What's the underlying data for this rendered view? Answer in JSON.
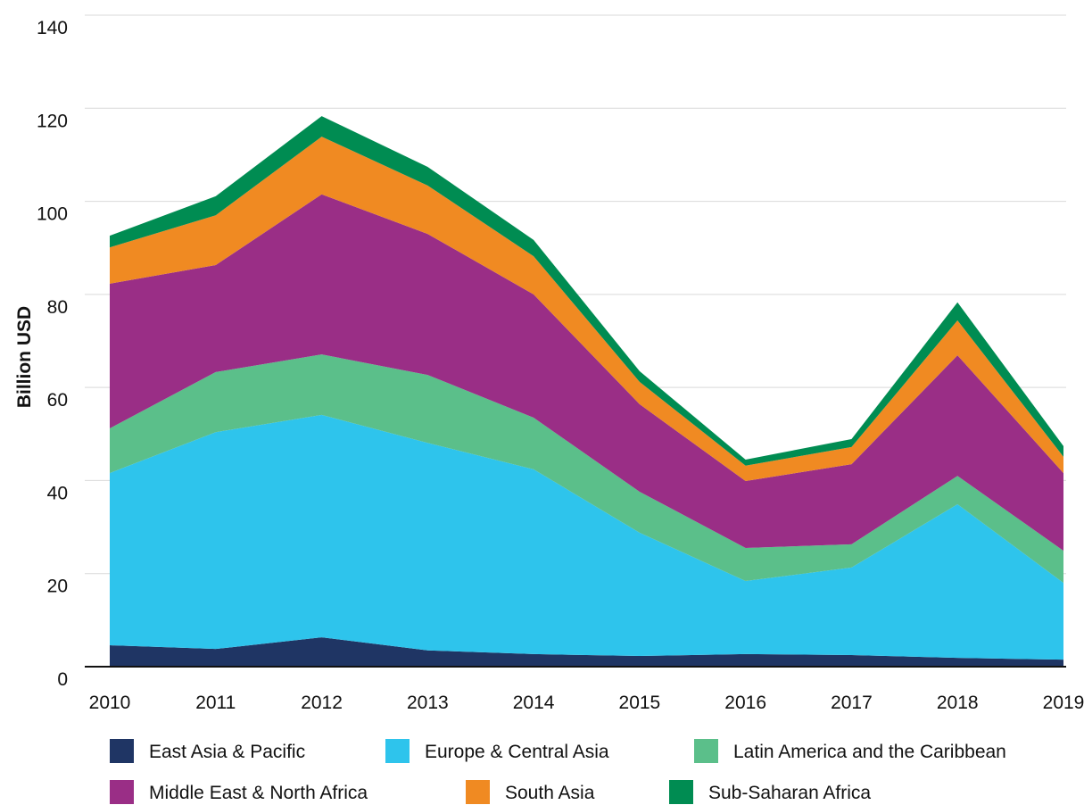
{
  "chart_data": {
    "type": "stacked_area",
    "y_label": "Billion USD",
    "x": [
      2010,
      2011,
      2012,
      2013,
      2014,
      2015,
      2016,
      2017,
      2018,
      2019
    ],
    "xlim": [
      2010,
      2019
    ],
    "ylim": [
      0,
      140
    ],
    "yticks": [
      0,
      20,
      40,
      60,
      80,
      100,
      120,
      140
    ],
    "grid": true,
    "legend": "bottom",
    "series": [
      {
        "name": "East Asia & Pacific",
        "color": "#1f3564",
        "values": [
          4.6,
          3.8,
          6.3,
          3.5,
          2.7,
          2.3,
          2.7,
          2.5,
          1.9,
          1.5
        ]
      },
      {
        "name": "Europe & Central Asia",
        "color": "#2ec4ec",
        "values": [
          37.0,
          46.6,
          47.8,
          44.6,
          39.7,
          26.5,
          15.7,
          18.8,
          33.0,
          16.5
        ]
      },
      {
        "name": "Latin America and the Caribbean",
        "color": "#5bbf8a",
        "values": [
          9.6,
          12.9,
          13.0,
          14.6,
          11.1,
          8.8,
          7.1,
          5.0,
          6.1,
          6.9
        ]
      },
      {
        "name": "Middle East & North Africa",
        "color": "#9a2e86",
        "values": [
          31.1,
          23.0,
          34.4,
          30.3,
          26.5,
          18.8,
          14.4,
          17.2,
          25.9,
          16.7
        ]
      },
      {
        "name": "South Asia",
        "color": "#f08a22",
        "values": [
          7.8,
          10.7,
          12.4,
          10.4,
          8.2,
          4.8,
          3.3,
          3.7,
          7.5,
          3.5
        ]
      },
      {
        "name": "Sub-Saharan Africa",
        "color": "#008c52",
        "values": [
          2.5,
          4.1,
          4.4,
          4.0,
          3.5,
          2.3,
          1.3,
          1.7,
          3.9,
          2.3
        ]
      }
    ]
  }
}
